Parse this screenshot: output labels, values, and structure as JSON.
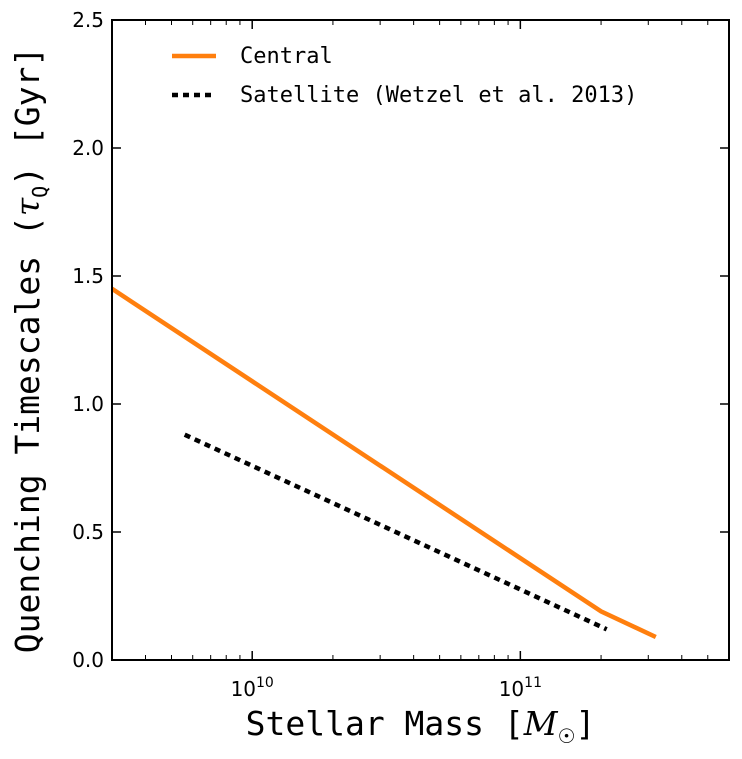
{
  "chart_data": {
    "type": "line",
    "title": "",
    "xlabel": "Stellar Mass [M☉]",
    "ylabel": "Quenching Timescales (τQ) [Gyr]",
    "xlabel_text": "Stellar Mass [",
    "xlabel_symbol": "M",
    "xlabel_subscript": "☉",
    "xlabel_close": "]",
    "ylabel_text": "Quenching Timescales (",
    "ylabel_symbol": "τ",
    "ylabel_subscript": "Q",
    "ylabel_close": ") [Gyr]",
    "xscale": "log",
    "xlim": [
      3000000000.0,
      600000000000.0
    ],
    "ylim": [
      0.0,
      2.5
    ],
    "x_ticks": [
      {
        "value": 10000000000.0,
        "base": "10",
        "exp": "10"
      },
      {
        "value": 100000000000.0,
        "base": "10",
        "exp": "11"
      }
    ],
    "y_ticks": [
      {
        "value": 0.0,
        "label": "0.0"
      },
      {
        "value": 0.5,
        "label": "0.5"
      },
      {
        "value": 1.0,
        "label": "1.0"
      },
      {
        "value": 1.5,
        "label": "1.5"
      },
      {
        "value": 2.0,
        "label": "2.0"
      },
      {
        "value": 2.5,
        "label": "2.5"
      }
    ],
    "grid": false,
    "legend_position": "top-left",
    "series": [
      {
        "name": "Central",
        "style": "solid",
        "color": "#ff7f0e",
        "x": [
          3000000000.0,
          200000000000.0,
          320000000000.0
        ],
        "y": [
          1.45,
          0.19,
          0.09
        ]
      },
      {
        "name": "Satellite (Wetzel et al.  2013)",
        "style": "dotted",
        "color": "#000000",
        "x": [
          5600000000.0,
          210000000000.0
        ],
        "y": [
          0.88,
          0.12
        ]
      }
    ]
  }
}
